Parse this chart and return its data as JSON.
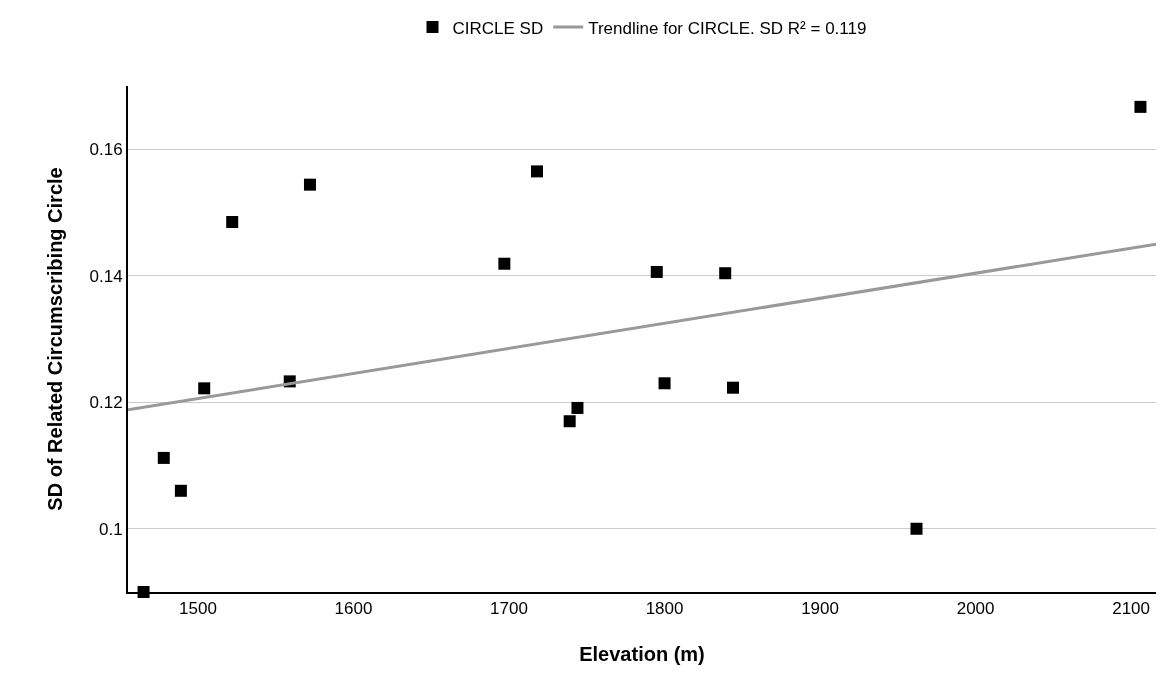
{
  "chart_data": {
    "type": "scatter",
    "xlabel": "Elevation (m)",
    "ylabel": "SD of Related Circumscribing Circle",
    "x": [
      1465,
      1478,
      1489,
      1504,
      1522,
      1559,
      1572,
      1697,
      1718,
      1739,
      1744,
      1795,
      1800,
      1839,
      1844,
      1962,
      2106
    ],
    "series": [
      {
        "name": "CIRCLE SD",
        "color": "#000000",
        "marker": "square",
        "values": [
          0.09,
          0.1112,
          0.106,
          0.1222,
          0.1485,
          0.1233,
          0.1544,
          0.1419,
          0.1565,
          0.117,
          0.1191,
          0.1406,
          0.123,
          0.1404,
          0.1223,
          0.1,
          0.1667
        ]
      },
      {
        "name": "Trendline for CIRCLE. SD R² = 0.119",
        "type": "line",
        "marker": "none",
        "color": "#999999",
        "x": [
          1455,
          2116
        ],
        "values": [
          0.1188,
          0.145
        ]
      }
    ],
    "xlim": [
      1455,
      2116
    ],
    "xticks": [
      1500,
      1600,
      1700,
      1800,
      1900,
      2000,
      2100
    ],
    "ylim": [
      0.09,
      0.17
    ],
    "yticks": [
      0.1,
      0.12,
      0.14,
      0.16
    ],
    "grid": "y",
    "legend": "top",
    "line_style": "solid"
  }
}
